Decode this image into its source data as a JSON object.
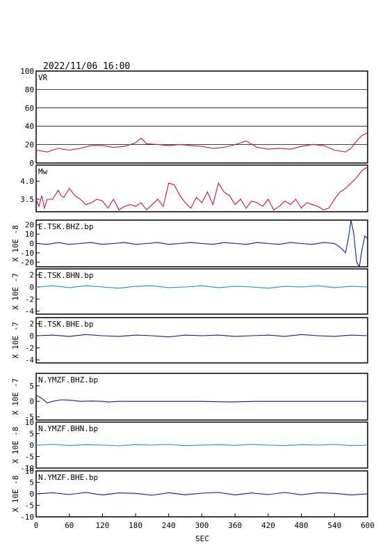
{
  "header": {
    "datetime": "2022/11/06  16:00"
  },
  "xaxis": {
    "label": "SEC",
    "range": [
      0,
      600
    ],
    "ticks": [
      "0",
      "60",
      "120",
      "180",
      "240",
      "300",
      "360",
      "420",
      "480",
      "540",
      "600"
    ]
  },
  "colors": {
    "frame": "#000000",
    "vr_trace": "#c0143c",
    "mw_trace": "#c0143c",
    "bhz_trace": "#0b1a8c",
    "bhn_trace": "#1e8fd0",
    "bhe_trace": "#0b1a8c"
  },
  "chart_data": [
    {
      "type": "line",
      "id": "vr",
      "title": "VR",
      "ylabel": "",
      "ylim": [
        0,
        100
      ],
      "yticks": [
        "0",
        "20",
        "40",
        "60",
        "80",
        "100"
      ],
      "grid": true,
      "color": "#c0143c",
      "x": [
        0,
        20,
        40,
        60,
        80,
        100,
        120,
        140,
        160,
        180,
        190,
        200,
        220,
        240,
        260,
        280,
        300,
        320,
        340,
        360,
        380,
        400,
        420,
        440,
        460,
        480,
        500,
        520,
        540,
        560,
        570,
        580,
        590,
        600
      ],
      "values": [
        14,
        12,
        16,
        14,
        16,
        19,
        19,
        17,
        18,
        22,
        27,
        21,
        20,
        19,
        20,
        19,
        18,
        16,
        17,
        20,
        24,
        17,
        15,
        16,
        15,
        18,
        20,
        19,
        14,
        12,
        16,
        24,
        30,
        33
      ]
    },
    {
      "type": "line",
      "id": "mw",
      "title": "Mw",
      "ylabel": "",
      "ylim": [
        3.15,
        4.45
      ],
      "yticks": [
        "3.5",
        "4.0"
      ],
      "grid": false,
      "color": "#c0143c",
      "x": [
        0,
        5,
        10,
        15,
        20,
        30,
        40,
        45,
        50,
        60,
        70,
        80,
        90,
        100,
        110,
        120,
        130,
        140,
        150,
        160,
        170,
        180,
        190,
        200,
        210,
        220,
        230,
        240,
        250,
        260,
        270,
        280,
        290,
        300,
        310,
        320,
        330,
        340,
        350,
        360,
        370,
        380,
        390,
        400,
        410,
        420,
        430,
        440,
        450,
        460,
        470,
        480,
        490,
        500,
        510,
        520,
        530,
        540,
        550,
        560,
        570,
        580,
        590,
        600
      ],
      "values": [
        3.5,
        3.3,
        3.6,
        3.25,
        3.5,
        3.5,
        3.75,
        3.6,
        3.55,
        3.8,
        3.6,
        3.5,
        3.35,
        3.4,
        3.5,
        3.45,
        3.25,
        3.5,
        3.2,
        3.3,
        3.35,
        3.3,
        3.4,
        3.2,
        3.35,
        3.5,
        3.3,
        3.95,
        3.9,
        3.6,
        3.4,
        3.25,
        3.55,
        3.4,
        3.7,
        3.35,
        3.95,
        3.7,
        3.6,
        3.35,
        3.5,
        3.25,
        3.45,
        3.4,
        3.3,
        3.5,
        3.2,
        3.3,
        3.45,
        3.35,
        3.5,
        3.25,
        3.4,
        3.35,
        3.3,
        3.2,
        3.25,
        3.5,
        3.7,
        3.8,
        3.95,
        4.1,
        4.3,
        4.4
      ]
    },
    {
      "type": "line",
      "id": "e_tsk_bhz",
      "title": "E.TSK.BHZ.bp",
      "ylabel": "X 10E -8",
      "ylim": [
        -25,
        25
      ],
      "yticks": [
        "-20",
        "-10",
        "0",
        "10",
        "20"
      ],
      "grid": false,
      "color": "#0b1a8c",
      "x": [
        0,
        20,
        40,
        60,
        80,
        100,
        120,
        140,
        160,
        180,
        200,
        220,
        240,
        260,
        280,
        300,
        320,
        340,
        360,
        380,
        400,
        420,
        440,
        460,
        480,
        500,
        520,
        540,
        550,
        560,
        565,
        570,
        575,
        580,
        585,
        590,
        595,
        600
      ],
      "values": [
        0,
        -1,
        1,
        -1,
        0,
        1,
        -1,
        0,
        1,
        -1,
        0,
        1,
        -1,
        0,
        1,
        0,
        -1,
        1,
        0,
        -1,
        1,
        0,
        -1,
        1,
        0,
        -1,
        1,
        0,
        -4,
        -10,
        5,
        26,
        10,
        -20,
        -27,
        -6,
        8,
        5
      ]
    },
    {
      "type": "line",
      "id": "e_tsk_bhn",
      "title": "E.TSK.BHN.bp",
      "ylabel": "X 10E -7",
      "ylim": [
        -4.5,
        3
      ],
      "yticks": [
        "-4",
        "-2",
        "0",
        "2"
      ],
      "grid": false,
      "color": "#1e8fd0",
      "x": [
        0,
        30,
        60,
        90,
        120,
        150,
        180,
        210,
        240,
        270,
        300,
        330,
        360,
        390,
        420,
        450,
        480,
        510,
        540,
        570,
        600
      ],
      "values": [
        0,
        0.2,
        -0.1,
        0.2,
        0,
        -0.2,
        0.1,
        0.2,
        -0.1,
        0,
        0.2,
        -0.1,
        0.1,
        0,
        -0.2,
        0.1,
        0,
        0.2,
        -0.1,
        0.1,
        0
      ]
    },
    {
      "type": "line",
      "id": "e_tsk_bhe",
      "title": "E.TSK.BHE.bp",
      "ylabel": "X 10E -7",
      "ylim": [
        -4.5,
        3
      ],
      "yticks": [
        "-4",
        "-2",
        "0",
        "2"
      ],
      "grid": false,
      "color": "#0b1a8c",
      "x": [
        0,
        30,
        60,
        90,
        120,
        150,
        180,
        210,
        240,
        270,
        300,
        330,
        360,
        390,
        420,
        450,
        480,
        510,
        540,
        570,
        600
      ],
      "values": [
        0,
        0.1,
        -0.1,
        0.2,
        0,
        -0.1,
        0.1,
        0,
        -0.2,
        0.1,
        0,
        0.1,
        -0.1,
        0,
        0.1,
        -0.1,
        0.2,
        0,
        -0.1,
        0.1,
        0
      ]
    },
    {
      "type": "line",
      "id": "n_ymzf_bhz",
      "title": "N.YMZF.BHZ.bp",
      "ylabel": "X 10E -7",
      "ylim": [
        -6,
        9
      ],
      "yticks": [
        "-5",
        "0",
        "5"
      ],
      "grid": false,
      "color": "#0b1a8c",
      "x": [
        0,
        5,
        10,
        20,
        30,
        45,
        60,
        80,
        100,
        120,
        130,
        150,
        160,
        200,
        250,
        300,
        350,
        400,
        450,
        500,
        550,
        600
      ],
      "values": [
        2,
        1.5,
        1,
        -0.5,
        0,
        0.5,
        0.4,
        0,
        0.1,
        0,
        -0.2,
        0,
        0,
        0,
        0,
        0,
        -0.2,
        0,
        0,
        0,
        0,
        0
      ]
    },
    {
      "type": "line",
      "id": "n_ymzf_bhn",
      "title": "N.YMZF.BHN.bp",
      "ylabel": "X 10E -8",
      "ylim": [
        -10,
        10
      ],
      "yticks": [
        "-10",
        "-5",
        "0",
        "5",
        "10"
      ],
      "grid": false,
      "color": "#1e8fd0",
      "x": [
        0,
        30,
        60,
        90,
        120,
        150,
        180,
        210,
        240,
        270,
        300,
        330,
        360,
        390,
        420,
        450,
        480,
        510,
        540,
        570,
        600
      ],
      "values": [
        0,
        0.3,
        -0.2,
        0.2,
        0,
        -0.3,
        0.2,
        0,
        0.3,
        -0.2,
        0,
        0.2,
        -0.1,
        0.3,
        0,
        -0.2,
        0.2,
        0,
        0.3,
        -0.2,
        0
      ]
    },
    {
      "type": "line",
      "id": "n_ymzf_bhe",
      "title": "N.YMZF.BHE.bp",
      "ylabel": "X 10E -8",
      "ylim": [
        -10,
        10
      ],
      "yticks": [
        "-10",
        "-5",
        "0",
        "5",
        "10"
      ],
      "grid": false,
      "color": "#0b1a8c",
      "x": [
        0,
        30,
        60,
        90,
        120,
        150,
        180,
        210,
        240,
        270,
        300,
        330,
        360,
        390,
        420,
        450,
        480,
        510,
        540,
        570,
        600
      ],
      "values": [
        0,
        0.5,
        -0.3,
        0.6,
        -0.5,
        0.4,
        0.2,
        -0.6,
        0.5,
        -0.4,
        0.3,
        0.6,
        -0.5,
        0.4,
        -0.3,
        0.6,
        -0.4,
        0.5,
        0.2,
        -0.5,
        0
      ]
    }
  ]
}
